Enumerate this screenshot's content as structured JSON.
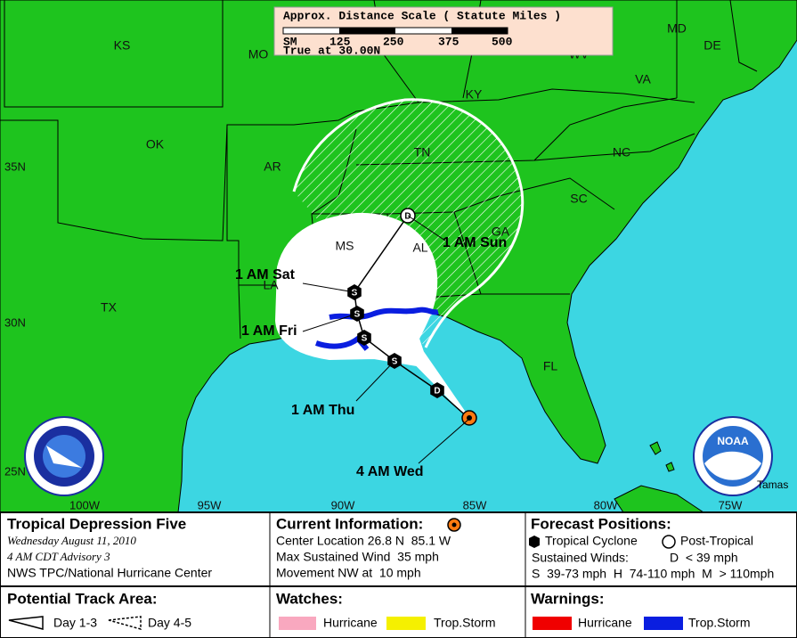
{
  "scale": {
    "title": "Approx. Distance Scale ( Statute Miles )",
    "ticks": [
      "SM",
      "125",
      "250",
      "375",
      "500"
    ],
    "note": "True at 30.00N"
  },
  "map": {
    "states": [
      "KS",
      "MO",
      "KY",
      "WV",
      "VA",
      "MD",
      "DE",
      "OK",
      "AR",
      "TN",
      "NC",
      "SC",
      "GA",
      "MS",
      "AL",
      "LA",
      "TX",
      "FL"
    ],
    "latitudes": [
      "35N",
      "30N",
      "25N"
    ],
    "longitudes": [
      "100W",
      "95W",
      "90W",
      "85W",
      "80W",
      "75W"
    ],
    "forecast_labels": [
      "4 AM Wed",
      "1 AM Thu",
      "1 AM Fri",
      "1 AM Sat",
      "1 AM Sun"
    ],
    "markers": [
      "D",
      "S",
      "S",
      "S",
      "S",
      "D"
    ],
    "logo": "NOAA",
    "credit": "Tamas"
  },
  "storm": {
    "name": "Tropical Depression Five",
    "date": "Wednesday August 11, 2010",
    "advisory": "4 AM CDT Advisory 3",
    "agency": "NWS TPC/National Hurricane Center"
  },
  "current": {
    "title": "Current Information:",
    "location": "Center Location 26.8 N  85.1 W",
    "wind": "Max Sustained Wind  35 mph",
    "movement": "Movement NW at  10 mph"
  },
  "forecast": {
    "title": "Forecast Positions:",
    "cyclone": "Tropical Cyclone",
    "post_tropical": "Post-Tropical",
    "winds_title": "Sustained Winds:",
    "winds_d": "D  < 39 mph",
    "winds_scale": "S  39-73 mph  H  74-110 mph  M  > 110mph"
  },
  "track_area": {
    "title": "Potential Track Area:",
    "day13": "Day 1-3",
    "day45": "Day 4-5"
  },
  "watches": {
    "title": "Watches:",
    "items": [
      "Hurricane",
      "Trop.Storm"
    ]
  },
  "warnings": {
    "title": "Warnings:",
    "items": [
      "Hurricane",
      "Trop.Storm"
    ]
  }
}
